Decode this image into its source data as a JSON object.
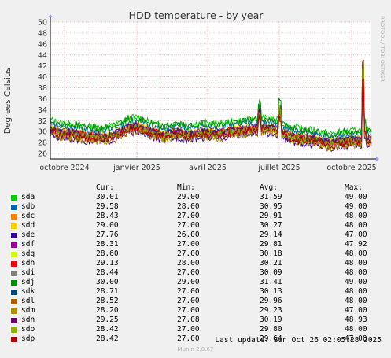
{
  "chart_data": {
    "type": "line",
    "title": "HDD temperature - by year",
    "ylabel": "Degrees Celsius",
    "watermark": "RRDTOOL / TOBI OETIKER",
    "ylim": [
      25,
      50
    ],
    "yticks": [
      26,
      28,
      30,
      32,
      34,
      36,
      38,
      40,
      42,
      44,
      46,
      48,
      50
    ],
    "xlim": [
      "2024-09-13",
      "2025-10-26"
    ],
    "xticks": [
      {
        "label": "octobre 2024",
        "date": "2024-10-01"
      },
      {
        "label": "janvier 2025",
        "date": "2025-01-01"
      },
      {
        "label": "avril 2025",
        "date": "2025-04-01"
      },
      {
        "label": "juillet 2025",
        "date": "2025-07-01"
      },
      {
        "label": "octobre 2025",
        "date": "2025-10-01"
      }
    ],
    "grid": true,
    "columns": [
      "Cur:",
      "Min:",
      "Avg:",
      "Max:"
    ],
    "series": [
      {
        "name": "sda",
        "color": "#00cc00",
        "cur": "30.01",
        "min": "29.00",
        "avg": "31.59",
        "max": "49.00"
      },
      {
        "name": "sdb",
        "color": "#0066b3",
        "cur": "29.58",
        "min": "28.00",
        "avg": "30.95",
        "max": "49.00"
      },
      {
        "name": "sdc",
        "color": "#ff8000",
        "cur": "28.43",
        "min": "27.00",
        "avg": "29.91",
        "max": "48.00"
      },
      {
        "name": "sdd",
        "color": "#ffcc00",
        "cur": "29.00",
        "min": "27.00",
        "avg": "30.27",
        "max": "48.00"
      },
      {
        "name": "sde",
        "color": "#330099",
        "cur": "27.76",
        "min": "26.00",
        "avg": "29.14",
        "max": "47.00"
      },
      {
        "name": "sdf",
        "color": "#990099",
        "cur": "28.31",
        "min": "27.00",
        "avg": "29.81",
        "max": "47.92"
      },
      {
        "name": "sdg",
        "color": "#ccff00",
        "cur": "28.60",
        "min": "27.00",
        "avg": "30.18",
        "max": "48.00"
      },
      {
        "name": "sdh",
        "color": "#ff0000",
        "cur": "29.13",
        "min": "28.00",
        "avg": "30.21",
        "max": "48.00"
      },
      {
        "name": "sdi",
        "color": "#808080",
        "cur": "28.44",
        "min": "27.00",
        "avg": "30.09",
        "max": "48.00"
      },
      {
        "name": "sdj",
        "color": "#008f00",
        "cur": "30.00",
        "min": "29.00",
        "avg": "31.41",
        "max": "49.00"
      },
      {
        "name": "sdk",
        "color": "#00487d",
        "cur": "28.71",
        "min": "27.00",
        "avg": "30.13",
        "max": "48.00"
      },
      {
        "name": "sdl",
        "color": "#b35a00",
        "cur": "28.52",
        "min": "27.00",
        "avg": "29.96",
        "max": "48.00"
      },
      {
        "name": "sdm",
        "color": "#b38f00",
        "cur": "28.20",
        "min": "27.00",
        "avg": "29.23",
        "max": "47.00"
      },
      {
        "name": "sdn",
        "color": "#6b006b",
        "cur": "29.25",
        "min": "27.08",
        "avg": "30.19",
        "max": "48.93"
      },
      {
        "name": "sdo",
        "color": "#8fb300",
        "cur": "28.42",
        "min": "27.00",
        "avg": "29.80",
        "max": "48.00"
      },
      {
        "name": "sdp",
        "color": "#b30000",
        "cur": "28.42",
        "min": "27.00",
        "avg": "29.64",
        "max": "47.00"
      }
    ]
  },
  "last_update": "Last update:  Sun Oct 26 02:05:28 2025",
  "footer": "Munin 2.0.67"
}
